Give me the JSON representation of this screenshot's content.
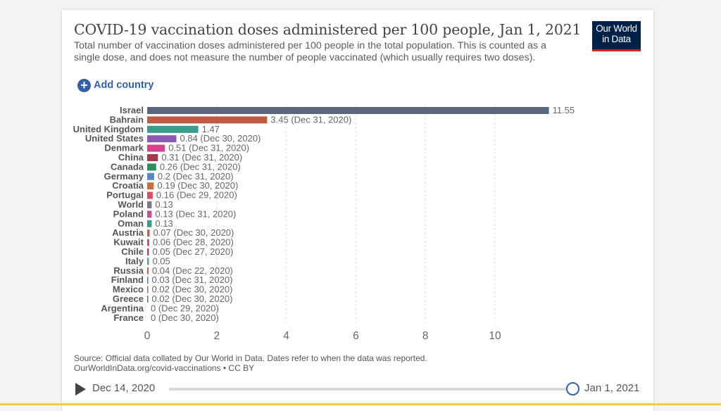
{
  "header": {
    "title": "COVID-19 vaccination doses administered per 100 people, Jan 1, 2021",
    "subtitle": "Total number of vaccination doses administered per 100 people in the total population. This is counted as a single dose, and does not measure the number of people vaccinated (which usually requires two doses).",
    "logo_line1": "Our World",
    "logo_line2": "in Data"
  },
  "controls": {
    "add_country_label": "Add country"
  },
  "chart_data": {
    "type": "bar",
    "orientation": "horizontal",
    "title": "COVID-19 vaccination doses administered per 100 people, Jan 1, 2021",
    "xlabel": "",
    "ylabel": "",
    "xlim": [
      0,
      12
    ],
    "xticks": [
      0,
      2,
      4,
      6,
      8,
      10
    ],
    "grid": true,
    "categories": [
      "Israel",
      "Bahrain",
      "United Kingdom",
      "United States",
      "Denmark",
      "China",
      "Canada",
      "Germany",
      "Croatia",
      "Portugal",
      "World",
      "Poland",
      "Oman",
      "Austria",
      "Kuwait",
      "Chile",
      "Italy",
      "Russia",
      "Finland",
      "Mexico",
      "Greece",
      "Argentina",
      "France"
    ],
    "values": [
      11.55,
      3.45,
      1.47,
      0.84,
      0.51,
      0.31,
      0.26,
      0.2,
      0.19,
      0.16,
      0.13,
      0.13,
      0.13,
      0.07,
      0.06,
      0.05,
      0.05,
      0.04,
      0.03,
      0.02,
      0.02,
      0,
      0
    ],
    "labels": [
      "11.55",
      "3.45 (Dec 31, 2020)",
      "1.47",
      "0.84 (Dec 30, 2020)",
      "0.51 (Dec 31, 2020)",
      "0.31 (Dec 31, 2020)",
      "0.26 (Dec 31, 2020)",
      "0.2 (Dec 31, 2020)",
      "0.19 (Dec 30, 2020)",
      "0.16 (Dec 29, 2020)",
      "0.13",
      "0.13 (Dec 31, 2020)",
      "0.13",
      "0.07 (Dec 30, 2020)",
      "0.06 (Dec 28, 2020)",
      "0.05 (Dec 27, 2020)",
      "0.05",
      "0.04 (Dec 22, 2020)",
      "0.03 (Dec 31, 2020)",
      "0.02 (Dec 30, 2020)",
      "0.02 (Dec 30, 2020)",
      "0 (Dec 29, 2020)",
      "0 (Dec 30, 2020)"
    ],
    "colors": [
      "#58677d",
      "#c05c42",
      "#3a9b8e",
      "#8c5bb0",
      "#d4438b",
      "#a23b4f",
      "#2a8f5a",
      "#5b86c4",
      "#c87040",
      "#d4506a",
      "#7b7b8d",
      "#c8509a",
      "#3c9a8c",
      "#c06050",
      "#d04f7a",
      "#9a4e6e",
      "#4aa88a",
      "#c9604a",
      "#4d7aa0",
      "#a06090",
      "#606a78",
      "#c07050",
      "#808090"
    ]
  },
  "footer": {
    "source_line1": "Source: Official data collated by Our World in Data. Dates refer to when the data was reported.",
    "source_line2": "OurWorldInData.org/covid-vaccinations • CC BY"
  },
  "timeline": {
    "start_label": "Dec 14, 2020",
    "end_label": "Jan 1, 2021",
    "position_fraction": 1.0
  }
}
